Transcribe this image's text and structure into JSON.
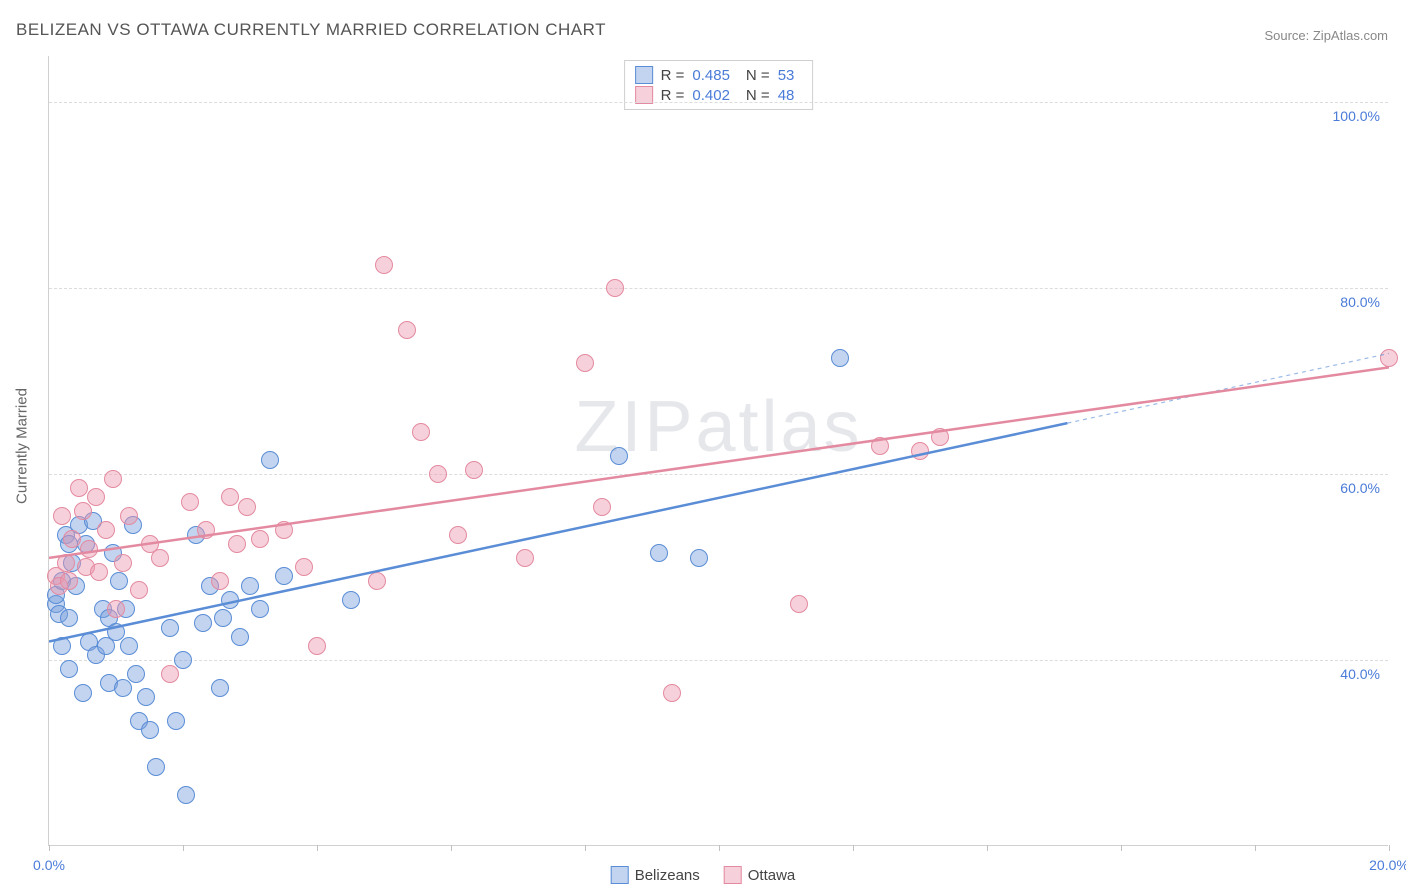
{
  "title": "BELIZEAN VS OTTAWA CURRENTLY MARRIED CORRELATION CHART",
  "source": "Source: ZipAtlas.com",
  "watermark": "ZIPatlas",
  "y_axis_label": "Currently Married",
  "chart": {
    "type": "scatter",
    "xlim": [
      0,
      20
    ],
    "ylim": [
      20,
      105
    ],
    "x_ticks": [
      0,
      2,
      4,
      6,
      8,
      10,
      12,
      14,
      16,
      18,
      20
    ],
    "x_tick_labels": {
      "0": "0.0%",
      "20": "20.0%"
    },
    "y_gridlines": [
      40,
      60,
      80,
      100
    ],
    "y_tick_labels": {
      "40": "40.0%",
      "60": "60.0%",
      "80": "80.0%",
      "100": "100.0%"
    },
    "background_color": "#ffffff",
    "grid_color": "#dcdcdc",
    "axis_color": "#d0d0d0",
    "tick_label_color": "#4a7bd8",
    "marker_radius": 9,
    "marker_opacity": 0.55,
    "series": [
      {
        "name": "Belizeans",
        "color": "#5a8dd6",
        "fill": "rgba(120,160,220,0.45)",
        "stroke": "#5a8dd6",
        "R": "0.485",
        "N": "53",
        "trend": {
          "x1": 0,
          "y1": 42,
          "x2": 15.2,
          "y2": 65.5,
          "extend_x2": 20,
          "extend_y2": 73
        },
        "points": [
          [
            0.1,
            46
          ],
          [
            0.1,
            47
          ],
          [
            0.15,
            45
          ],
          [
            0.2,
            48.5
          ],
          [
            0.2,
            41.5
          ],
          [
            0.25,
            53.5
          ],
          [
            0.3,
            52.5
          ],
          [
            0.3,
            44.5
          ],
          [
            0.3,
            39
          ],
          [
            0.35,
            50.5
          ],
          [
            0.4,
            48
          ],
          [
            0.45,
            54.5
          ],
          [
            0.5,
            36.5
          ],
          [
            0.55,
            52.5
          ],
          [
            0.6,
            42
          ],
          [
            0.65,
            55
          ],
          [
            0.7,
            40.5
          ],
          [
            0.8,
            45.5
          ],
          [
            0.85,
            41.5
          ],
          [
            0.9,
            44.5
          ],
          [
            0.9,
            37.5
          ],
          [
            0.95,
            51.5
          ],
          [
            1.0,
            43
          ],
          [
            1.05,
            48.5
          ],
          [
            1.1,
            37
          ],
          [
            1.15,
            45.5
          ],
          [
            1.2,
            41.5
          ],
          [
            1.25,
            54.5
          ],
          [
            1.3,
            38.5
          ],
          [
            1.35,
            33.5
          ],
          [
            1.45,
            36
          ],
          [
            1.5,
            32.5
          ],
          [
            1.6,
            28.5
          ],
          [
            1.8,
            43.5
          ],
          [
            1.9,
            33.5
          ],
          [
            2.0,
            40
          ],
          [
            2.05,
            25.5
          ],
          [
            2.2,
            53.5
          ],
          [
            2.3,
            44
          ],
          [
            2.4,
            48
          ],
          [
            2.55,
            37
          ],
          [
            2.6,
            44.5
          ],
          [
            2.7,
            46.5
          ],
          [
            2.85,
            42.5
          ],
          [
            3.0,
            48
          ],
          [
            3.15,
            45.5
          ],
          [
            3.3,
            61.5
          ],
          [
            3.5,
            49
          ],
          [
            4.5,
            46.5
          ],
          [
            8.5,
            62
          ],
          [
            9.1,
            51.5
          ],
          [
            9.7,
            51
          ],
          [
            11.8,
            72.5
          ]
        ]
      },
      {
        "name": "Ottawa",
        "color": "#e48aa0",
        "fill": "rgba(235,150,175,0.45)",
        "stroke": "#e48aa0",
        "R": "0.402",
        "N": "48",
        "trend": {
          "x1": 0,
          "y1": 51,
          "x2": 20,
          "y2": 71.5
        },
        "points": [
          [
            0.1,
            49
          ],
          [
            0.15,
            48
          ],
          [
            0.2,
            55.5
          ],
          [
            0.25,
            50.5
          ],
          [
            0.3,
            48.5
          ],
          [
            0.35,
            53
          ],
          [
            0.45,
            58.5
          ],
          [
            0.5,
            56
          ],
          [
            0.55,
            50
          ],
          [
            0.6,
            52
          ],
          [
            0.7,
            57.5
          ],
          [
            0.75,
            49.5
          ],
          [
            0.85,
            54
          ],
          [
            0.95,
            59.5
          ],
          [
            1.0,
            45.5
          ],
          [
            1.1,
            50.5
          ],
          [
            1.2,
            55.5
          ],
          [
            1.35,
            47.5
          ],
          [
            1.5,
            52.5
          ],
          [
            1.65,
            51
          ],
          [
            1.8,
            38.5
          ],
          [
            2.1,
            57
          ],
          [
            2.35,
            54
          ],
          [
            2.55,
            48.5
          ],
          [
            2.7,
            57.5
          ],
          [
            2.8,
            52.5
          ],
          [
            2.95,
            56.5
          ],
          [
            3.15,
            53
          ],
          [
            3.5,
            54
          ],
          [
            3.8,
            50
          ],
          [
            4.0,
            41.5
          ],
          [
            4.9,
            48.5
          ],
          [
            5.0,
            82.5
          ],
          [
            5.35,
            75.5
          ],
          [
            5.55,
            64.5
          ],
          [
            5.8,
            60
          ],
          [
            6.1,
            53.5
          ],
          [
            6.35,
            60.5
          ],
          [
            7.1,
            51
          ],
          [
            8.0,
            72
          ],
          [
            8.25,
            56.5
          ],
          [
            8.45,
            80
          ],
          [
            9.3,
            36.5
          ],
          [
            11.2,
            46
          ],
          [
            12.4,
            63
          ],
          [
            13.0,
            62.5
          ],
          [
            13.3,
            64
          ],
          [
            20.0,
            72.5
          ]
        ]
      }
    ]
  },
  "stats_box": {
    "rows": [
      {
        "swatch_fill": "rgba(120,160,220,0.45)",
        "swatch_stroke": "#5a8dd6",
        "r_label": "R =",
        "r_val": "0.485",
        "n_label": "N =",
        "n_val": "53"
      },
      {
        "swatch_fill": "rgba(235,150,175,0.45)",
        "swatch_stroke": "#e48aa0",
        "r_label": "R =",
        "r_val": "0.402",
        "n_label": "N =",
        "n_val": "48"
      }
    ]
  },
  "bottom_legend": [
    {
      "swatch_fill": "rgba(120,160,220,0.45)",
      "swatch_stroke": "#5a8dd6",
      "label": "Belizeans"
    },
    {
      "swatch_fill": "rgba(235,150,175,0.45)",
      "swatch_stroke": "#e48aa0",
      "label": "Ottawa"
    }
  ]
}
